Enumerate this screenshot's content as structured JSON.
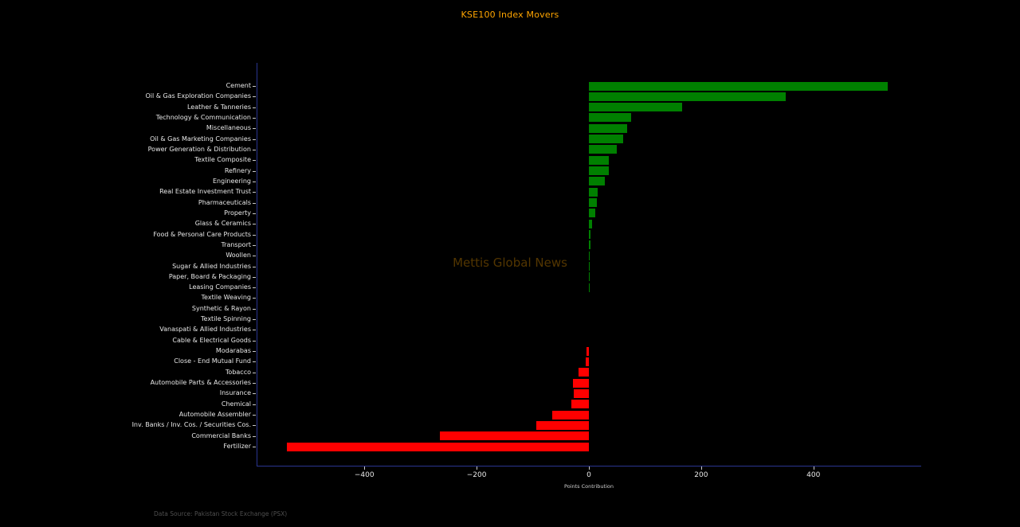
{
  "title": "KSE100 Index Movers",
  "watermark": "Mettis Global News",
  "footer": "Data Source: Pakistan Stock Exchange (PSX)",
  "chart_data": {
    "type": "bar",
    "orientation": "horizontal",
    "title": "KSE100 Index Movers",
    "xlabel": "Points Contribution",
    "xlim": [
      -592,
      592
    ],
    "xticks": [
      -400,
      -200,
      0,
      200,
      400
    ],
    "grid": false,
    "legend": "none",
    "positive_color": "#008000",
    "negative_color": "#ff0000",
    "categories": [
      "Cement",
      "Oil & Gas Exploration Companies",
      "Leather & Tanneries",
      "Technology & Communication",
      "Miscellaneous",
      "Oil & Gas Marketing Companies",
      "Power Generation & Distribution",
      "Textile Composite",
      "Refinery",
      "Engineering",
      "Real Estate Investment Trust",
      "Pharmaceuticals",
      "Property",
      "Glass & Ceramics",
      "Food & Personal Care Products",
      "Transport",
      "Woollen",
      "Sugar & Allied Industries",
      "Paper, Board & Packaging",
      "Leasing Companies",
      "Textile Weaving",
      "Synthetic & Rayon",
      "Textile Spinning",
      "Vanaspati & Allied Industries",
      "Cable & Electrical Goods",
      "Modarabas",
      "Close - End Mutual Fund",
      "Tobacco",
      "Automobile Parts & Accessories",
      "Insurance",
      "Chemical",
      "Automobile Assembler",
      "Inv. Banks / Inv. Cos. / Securities Cos.",
      "Commercial Banks",
      "Fertilizer"
    ],
    "values": [
      533,
      350,
      166,
      75,
      68,
      61,
      50,
      36,
      35,
      28,
      16,
      14,
      12,
      5,
      3.5,
      2.5,
      2,
      1.5,
      1.2,
      1,
      0,
      0,
      0,
      0,
      0,
      -4,
      -5,
      -18,
      -29,
      -27,
      -31,
      -65,
      -93,
      -266,
      -538
    ]
  },
  "colors": {
    "background": "#000000",
    "title": "#ffa500",
    "spine": "#2a3590",
    "tick_label": "#e8e8e8",
    "watermark": "rgba(255,165,0,0.32)",
    "footer": "#4f4f4f"
  }
}
